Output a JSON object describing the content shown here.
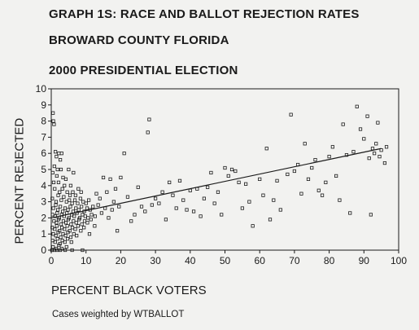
{
  "title_lines": [
    "GRAPH 1S: RACE AND BALLOT REJECTION RATES",
    "BROWARD COUNTY FLORIDA",
    "2000 PRESIDENTIAL ELECTION"
  ],
  "footnote": "Cases weighted by WTBALLOT",
  "chart_data": {
    "type": "scatter",
    "xlabel": "PERCENT BLACK VOTERS",
    "ylabel": "PERCENT REJECTED",
    "xlim": [
      0,
      100
    ],
    "ylim": [
      0,
      10
    ],
    "x_ticks": [
      0,
      10,
      20,
      30,
      40,
      50,
      60,
      70,
      80,
      90,
      100
    ],
    "y_ticks": [
      0,
      1,
      2,
      3,
      4,
      5,
      6,
      7,
      8,
      9,
      10
    ],
    "grid": false,
    "marker": "hollow-square",
    "fit_line": {
      "x": [
        0,
        95
      ],
      "y": [
        2.0,
        6.3
      ]
    },
    "points": [
      [
        0.5,
        8.5
      ],
      [
        0.8,
        7.8
      ],
      [
        0.6,
        8.0
      ],
      [
        1.2,
        6.1
      ],
      [
        1.5,
        5.8
      ],
      [
        2.2,
        6.0
      ],
      [
        3.0,
        6.0
      ],
      [
        2.6,
        5.6
      ],
      [
        0.9,
        5.2
      ],
      [
        1.8,
        5.0
      ],
      [
        2.8,
        5.0
      ],
      [
        0.4,
        4.8
      ],
      [
        1.6,
        4.6
      ],
      [
        3.4,
        4.5
      ],
      [
        0.7,
        4.2
      ],
      [
        2.1,
        4.2
      ],
      [
        3.8,
        4.0
      ],
      [
        5.0,
        5.0
      ],
      [
        4.2,
        4.4
      ],
      [
        5.6,
        4.0
      ],
      [
        6.4,
        4.8
      ],
      [
        1.0,
        3.8
      ],
      [
        2.4,
        3.6
      ],
      [
        3.2,
        3.8
      ],
      [
        4.6,
        3.6
      ],
      [
        5.4,
        3.4
      ],
      [
        6.2,
        3.6
      ],
      [
        7.0,
        3.4
      ],
      [
        7.8,
        3.8
      ],
      [
        8.6,
        3.6
      ],
      [
        0.3,
        3.2
      ],
      [
        1.4,
        3.0
      ],
      [
        2.0,
        3.4
      ],
      [
        2.9,
        3.1
      ],
      [
        3.6,
        3.3
      ],
      [
        4.4,
        3.0
      ],
      [
        5.2,
        3.1
      ],
      [
        6.0,
        2.9
      ],
      [
        6.8,
        3.1
      ],
      [
        7.6,
        2.9
      ],
      [
        8.4,
        3.2
      ],
      [
        9.2,
        3.0
      ],
      [
        10.0,
        2.9
      ],
      [
        10.8,
        3.1
      ],
      [
        0.6,
        2.6
      ],
      [
        1.3,
        2.8
      ],
      [
        1.9,
        2.5
      ],
      [
        2.6,
        2.7
      ],
      [
        3.3,
        2.4
      ],
      [
        4.0,
        2.6
      ],
      [
        4.8,
        2.5
      ],
      [
        5.5,
        2.7
      ],
      [
        6.3,
        2.4
      ],
      [
        7.1,
        2.6
      ],
      [
        7.9,
        2.5
      ],
      [
        8.7,
        2.7
      ],
      [
        9.5,
        2.4
      ],
      [
        10.3,
        2.6
      ],
      [
        11.2,
        2.5
      ],
      [
        12.0,
        2.7
      ],
      [
        0.4,
        2.2
      ],
      [
        1.1,
        2.1
      ],
      [
        1.7,
        2.3
      ],
      [
        2.3,
        2.0
      ],
      [
        3.0,
        2.2
      ],
      [
        3.7,
        2.1
      ],
      [
        4.5,
        2.3
      ],
      [
        5.1,
        2.0
      ],
      [
        5.9,
        2.2
      ],
      [
        6.6,
        2.1
      ],
      [
        7.4,
        2.3
      ],
      [
        8.2,
        2.0
      ],
      [
        9.0,
        2.2
      ],
      [
        9.8,
        2.1
      ],
      [
        10.6,
        2.0
      ],
      [
        11.6,
        2.2
      ],
      [
        12.6,
        2.1
      ],
      [
        0.8,
        1.8
      ],
      [
        1.5,
        1.7
      ],
      [
        2.1,
        1.9
      ],
      [
        2.8,
        1.6
      ],
      [
        3.5,
        1.8
      ],
      [
        4.2,
        1.7
      ],
      [
        4.9,
        1.9
      ],
      [
        5.7,
        1.6
      ],
      [
        6.4,
        1.8
      ],
      [
        7.2,
        1.7
      ],
      [
        8.0,
        1.9
      ],
      [
        8.8,
        1.6
      ],
      [
        9.6,
        1.8
      ],
      [
        10.4,
        1.7
      ],
      [
        11.4,
        1.9
      ],
      [
        0.3,
        1.4
      ],
      [
        1.0,
        1.3
      ],
      [
        1.6,
        1.5
      ],
      [
        2.4,
        1.2
      ],
      [
        3.1,
        1.4
      ],
      [
        3.8,
        1.3
      ],
      [
        4.6,
        1.5
      ],
      [
        5.3,
        1.2
      ],
      [
        6.1,
        1.4
      ],
      [
        6.9,
        1.3
      ],
      [
        7.7,
        1.5
      ],
      [
        8.5,
        1.2
      ],
      [
        9.4,
        1.4
      ],
      [
        0.6,
        1.0
      ],
      [
        1.3,
        0.9
      ],
      [
        2.0,
        1.1
      ],
      [
        2.7,
        0.8
      ],
      [
        3.4,
        1.0
      ],
      [
        4.1,
        0.9
      ],
      [
        4.8,
        1.1
      ],
      [
        5.6,
        0.8
      ],
      [
        6.5,
        1.0
      ],
      [
        7.3,
        0.9
      ],
      [
        0.4,
        0.6
      ],
      [
        1.1,
        0.5
      ],
      [
        1.8,
        0.7
      ],
      [
        2.5,
        0.4
      ],
      [
        3.2,
        0.6
      ],
      [
        3.9,
        0.5
      ],
      [
        4.7,
        0.7
      ],
      [
        5.8,
        0.5
      ],
      [
        0.5,
        0.2
      ],
      [
        1.4,
        0.1
      ],
      [
        2.2,
        0.3
      ],
      [
        3.0,
        0.1
      ],
      [
        4.4,
        0.2
      ],
      [
        0.2,
        0.0
      ],
      [
        0.9,
        0.0
      ],
      [
        1.7,
        0.0
      ],
      [
        2.6,
        0.0
      ],
      [
        4.0,
        0.0
      ],
      [
        6.0,
        0.0
      ],
      [
        9.0,
        0.0
      ],
      [
        11.0,
        1.0
      ],
      [
        12.5,
        1.5
      ],
      [
        13.0,
        3.5
      ],
      [
        13.5,
        2.8
      ],
      [
        14.0,
        3.2
      ],
      [
        14.5,
        2.3
      ],
      [
        15.0,
        4.5
      ],
      [
        15.5,
        2.6
      ],
      [
        16.0,
        3.6
      ],
      [
        16.5,
        2.0
      ],
      [
        17.0,
        4.4
      ],
      [
        17.5,
        2.5
      ],
      [
        18.0,
        3.0
      ],
      [
        18.5,
        3.8
      ],
      [
        19.0,
        1.2
      ],
      [
        19.5,
        2.7
      ],
      [
        20.0,
        4.5
      ],
      [
        21.0,
        6.0
      ],
      [
        22.0,
        3.3
      ],
      [
        23.0,
        1.8
      ],
      [
        24.0,
        2.2
      ],
      [
        25.0,
        3.9
      ],
      [
        26.0,
        2.7
      ],
      [
        27.0,
        2.4
      ],
      [
        27.8,
        7.3
      ],
      [
        28.2,
        8.1
      ],
      [
        29.0,
        2.8
      ],
      [
        30.0,
        3.2
      ],
      [
        31.0,
        2.9
      ],
      [
        32.0,
        3.6
      ],
      [
        33.0,
        1.9
      ],
      [
        34.0,
        4.2
      ],
      [
        35.0,
        3.4
      ],
      [
        36.0,
        2.6
      ],
      [
        37.0,
        4.3
      ],
      [
        38.0,
        3.1
      ],
      [
        39.0,
        2.5
      ],
      [
        40.0,
        3.7
      ],
      [
        41.0,
        2.4
      ],
      [
        42.0,
        3.8
      ],
      [
        43.0,
        2.1
      ],
      [
        44.0,
        3.2
      ],
      [
        45.0,
        3.9
      ],
      [
        46.0,
        4.8
      ],
      [
        47.0,
        2.9
      ],
      [
        48.0,
        3.6
      ],
      [
        49.0,
        2.2
      ],
      [
        50.0,
        5.1
      ],
      [
        51.0,
        4.6
      ],
      [
        52.0,
        5.0
      ],
      [
        53.0,
        4.9
      ],
      [
        54.0,
        4.2
      ],
      [
        55.0,
        2.6
      ],
      [
        56.0,
        4.1
      ],
      [
        57.0,
        3.0
      ],
      [
        58.0,
        1.5
      ],
      [
        60.0,
        4.4
      ],
      [
        61.0,
        3.4
      ],
      [
        62.0,
        6.3
      ],
      [
        63.0,
        1.9
      ],
      [
        64.0,
        3.1
      ],
      [
        65.0,
        4.3
      ],
      [
        66.0,
        2.5
      ],
      [
        68.0,
        4.7
      ],
      [
        69.0,
        8.4
      ],
      [
        70.0,
        4.9
      ],
      [
        71.0,
        5.3
      ],
      [
        72.0,
        3.5
      ],
      [
        73.0,
        6.6
      ],
      [
        74.0,
        4.4
      ],
      [
        75.0,
        5.1
      ],
      [
        76.0,
        5.6
      ],
      [
        77.0,
        3.7
      ],
      [
        78.0,
        3.4
      ],
      [
        79.0,
        4.2
      ],
      [
        80.0,
        5.8
      ],
      [
        81.0,
        6.4
      ],
      [
        82.0,
        4.6
      ],
      [
        83.0,
        3.1
      ],
      [
        84.0,
        7.8
      ],
      [
        85.0,
        5.9
      ],
      [
        86.0,
        2.3
      ],
      [
        87.0,
        6.1
      ],
      [
        88.0,
        8.9
      ],
      [
        89.0,
        7.5
      ],
      [
        90.0,
        6.9
      ],
      [
        91.0,
        8.3
      ],
      [
        91.5,
        5.7
      ],
      [
        92.0,
        2.2
      ],
      [
        92.5,
        6.3
      ],
      [
        93.0,
        6.0
      ],
      [
        93.5,
        6.6
      ],
      [
        94.0,
        7.9
      ],
      [
        94.5,
        5.8
      ],
      [
        95.0,
        6.2
      ],
      [
        96.0,
        5.4
      ],
      [
        96.5,
        6.4
      ]
    ]
  }
}
